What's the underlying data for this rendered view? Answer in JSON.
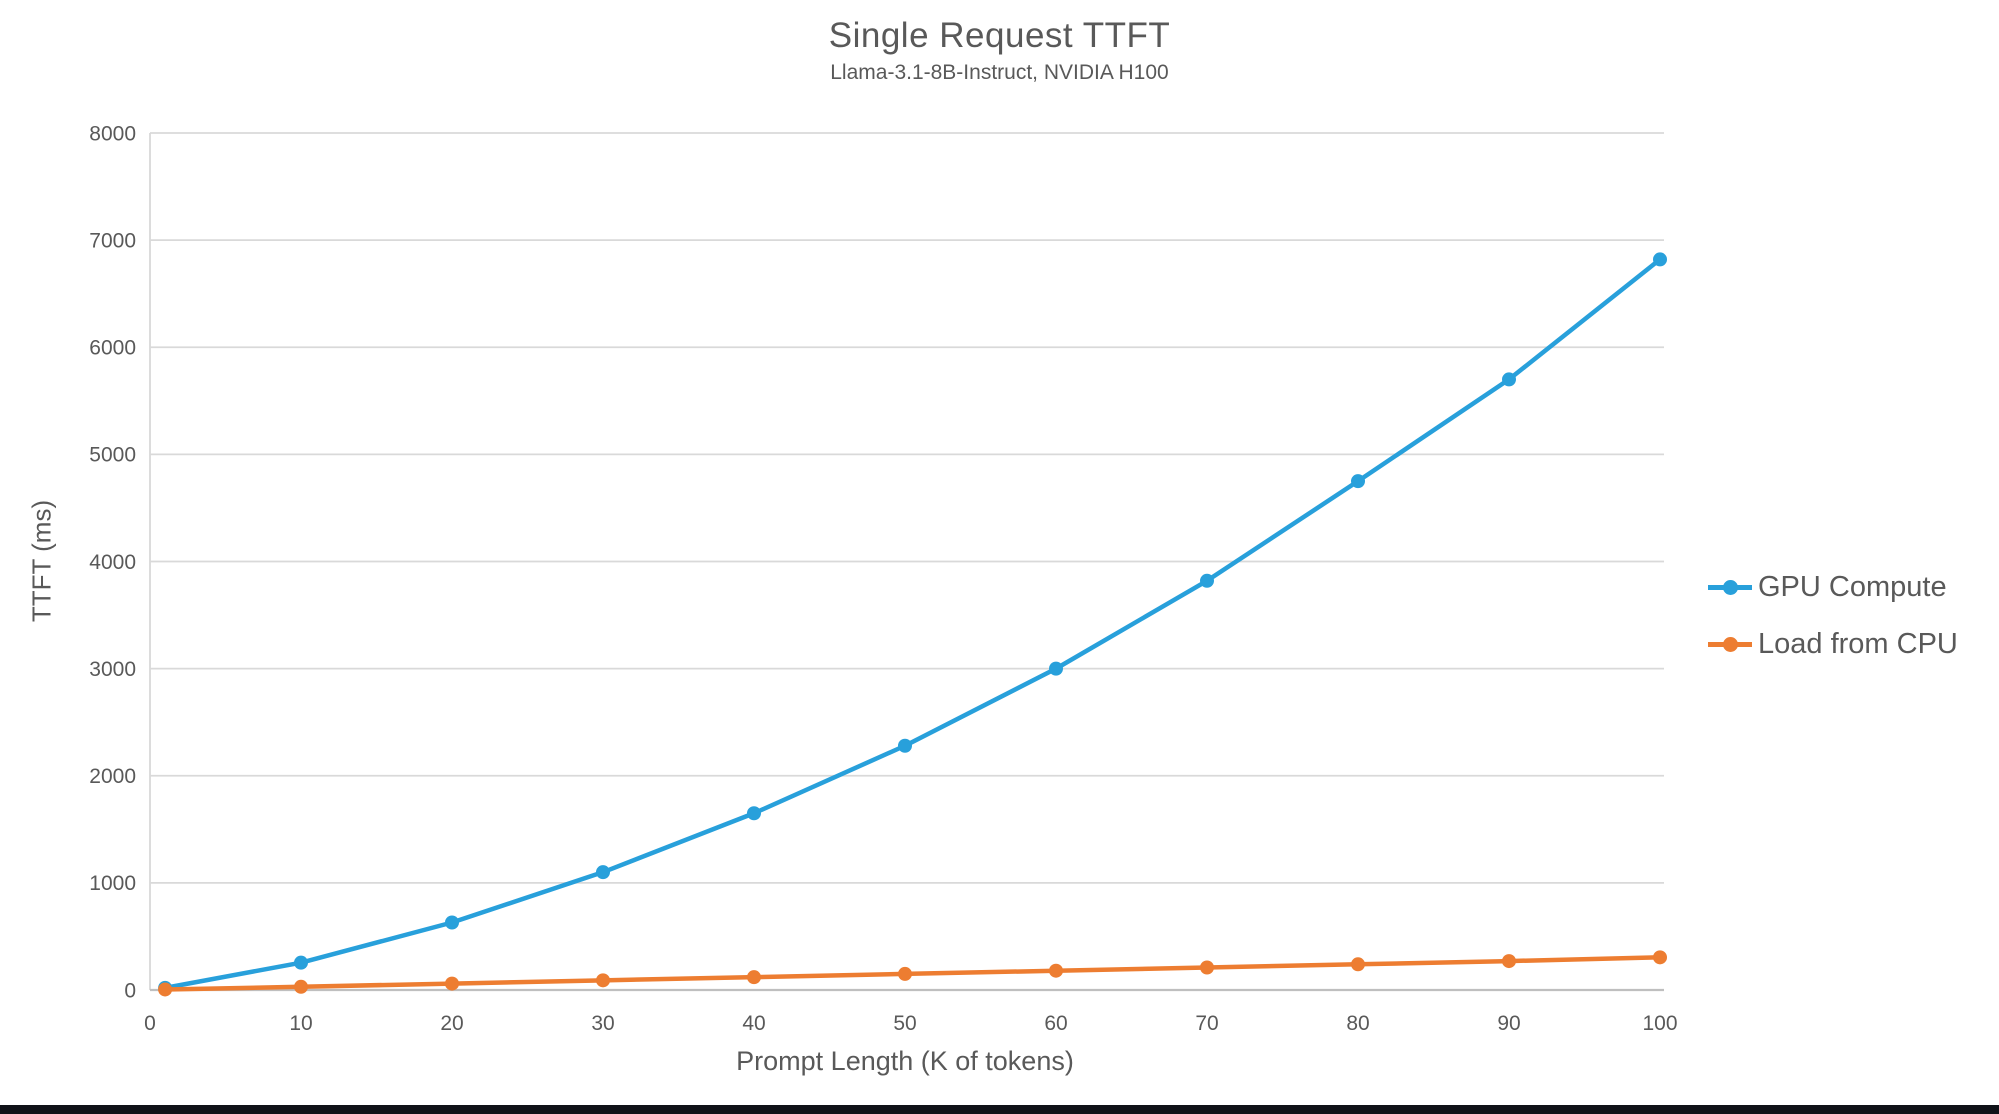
{
  "header": {
    "title": "Single Request TTFT",
    "subtitle": "Llama-3.1-8B-Instruct, NVIDIA H100"
  },
  "chart_data": {
    "type": "line",
    "x": [
      1,
      10,
      20,
      30,
      40,
      50,
      60,
      70,
      80,
      90,
      100
    ],
    "series": [
      {
        "name": "GPU Compute",
        "color": "#28A0DB",
        "values": [
          20,
          255,
          630,
          1100,
          1650,
          2280,
          3000,
          3820,
          4750,
          5700,
          6820
        ]
      },
      {
        "name": "Load from CPU",
        "color": "#ED7D31",
        "values": [
          5,
          30,
          60,
          90,
          120,
          150,
          180,
          210,
          240,
          270,
          305
        ]
      }
    ],
    "title": "Single Request TTFT",
    "subtitle": "Llama-3.1-8B-Instruct, NVIDIA H100",
    "xlabel": "Prompt Length (K of tokens)",
    "ylabel": "TTFT (ms)",
    "xlim": [
      0,
      100
    ],
    "ylim": [
      0,
      8000
    ],
    "xticks": [
      0,
      10,
      20,
      30,
      40,
      50,
      60,
      70,
      80,
      90,
      100
    ],
    "yticks": [
      0,
      1000,
      2000,
      3000,
      4000,
      5000,
      6000,
      7000,
      8000
    ],
    "grid": "horizontal",
    "legend_position": "right",
    "marker": "circle"
  },
  "colors": {
    "text": "#595959",
    "gridline": "#D9D9D9",
    "axis": "#BFBFBF",
    "background": "#FFFFFF",
    "bottom_bar": "#101218"
  }
}
